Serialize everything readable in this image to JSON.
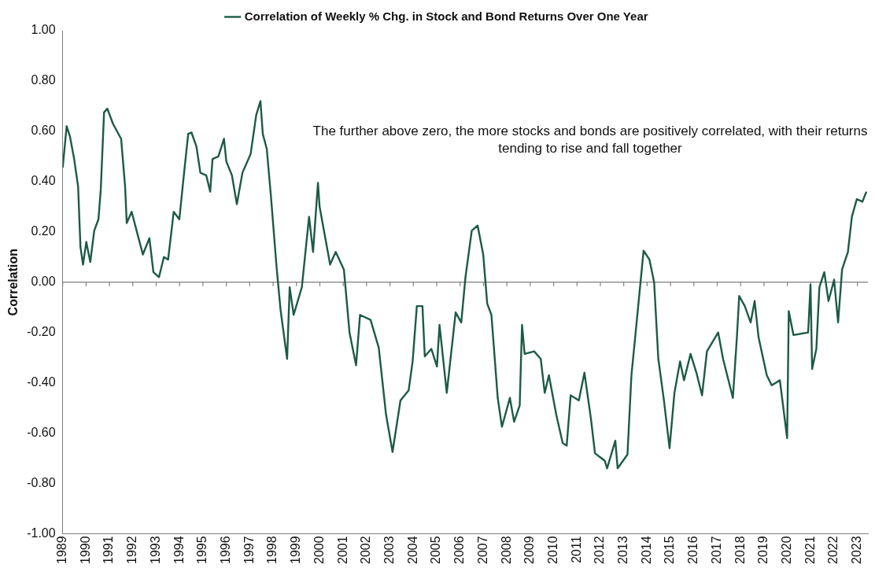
{
  "chart_data": {
    "type": "line",
    "ylabel": "Correlation",
    "legend": "top",
    "marker": "none",
    "annotations": [
      "The further above zero, the more stocks and bonds are positively correlated, with their returns tending to rise and fall together"
    ],
    "xlim": [
      1989,
      2023.45
    ],
    "xticks": [
      1989,
      1990,
      1991,
      1992,
      1993,
      1994,
      1995,
      1996,
      1997,
      1998,
      1999,
      2000,
      2001,
      2002,
      2003,
      2004,
      2005,
      2006,
      2007,
      2008,
      2009,
      2010,
      2011,
      2012,
      2013,
      2014,
      2015,
      2016,
      2017,
      2018,
      2019,
      2020,
      2021,
      2022,
      2023
    ],
    "ylim": [
      -1,
      1
    ],
    "yticks": [
      {
        "value": 1,
        "label": "1.00"
      },
      {
        "value": 0.8,
        "label": "0.80"
      },
      {
        "value": 0.6,
        "label": "0.60"
      },
      {
        "value": 0.4,
        "label": "0.40"
      },
      {
        "value": 0.2,
        "label": "0.20"
      },
      {
        "value": 0,
        "label": "0.00"
      },
      {
        "value": -0.2,
        "label": "-0.20"
      },
      {
        "value": -0.4,
        "label": "-0.40"
      },
      {
        "value": -0.6,
        "label": "-0.60"
      },
      {
        "value": -0.8,
        "label": "-0.80"
      },
      {
        "value": -1,
        "label": "-1.00"
      }
    ],
    "ref_lines": [
      {
        "axis": "y",
        "value": 0,
        "color": "#808080"
      }
    ],
    "series": [
      {
        "name": "Correlation of Weekly % Chg. in Stock and Bond Returns Over One Year",
        "color": "#1d5a48",
        "x": [
          1989.0,
          1989.17,
          1989.31,
          1989.49,
          1989.66,
          1989.76,
          1989.87,
          1990.01,
          1990.18,
          1990.35,
          1990.53,
          1990.63,
          1990.77,
          1990.91,
          1991.15,
          1991.5,
          1991.67,
          1991.74,
          1991.95,
          1992.19,
          1992.43,
          1992.71,
          1992.88,
          1993.12,
          1993.33,
          1993.51,
          1993.75,
          1993.99,
          1994.16,
          1994.37,
          1994.51,
          1994.72,
          1994.89,
          1995.14,
          1995.31,
          1995.41,
          1995.66,
          1995.9,
          1996.0,
          1996.24,
          1996.45,
          1996.69,
          1997.04,
          1997.28,
          1997.46,
          1997.56,
          1997.73,
          1997.91,
          1998.15,
          1998.32,
          1998.6,
          1998.71,
          1998.88,
          1999.23,
          1999.54,
          1999.71,
          1999.92,
          1999.99,
          2000.44,
          2000.68,
          2001.03,
          2001.27,
          2001.55,
          2001.72,
          2002.17,
          2002.52,
          2002.83,
          2003.11,
          2003.45,
          2003.8,
          2003.97,
          2004.15,
          2004.39,
          2004.49,
          2004.77,
          2005.01,
          2005.12,
          2005.43,
          2005.81,
          2006.05,
          2006.23,
          2006.5,
          2006.75,
          2006.99,
          2007.16,
          2007.34,
          2007.61,
          2007.79,
          2008.13,
          2008.31,
          2008.55,
          2008.65,
          2008.76,
          2009.17,
          2009.45,
          2009.62,
          2009.8,
          2010.11,
          2010.39,
          2010.56,
          2010.73,
          2011.08,
          2011.32,
          2011.6,
          2011.77,
          2012.19,
          2012.29,
          2012.64,
          2012.74,
          2013.16,
          2013.33,
          2013.51,
          2013.75,
          2013.85,
          2014.1,
          2014.3,
          2014.48,
          2014.72,
          2014.96,
          2015.17,
          2015.41,
          2015.58,
          2015.86,
          2016.11,
          2016.35,
          2016.56,
          2017.04,
          2017.25,
          2017.67,
          2017.84,
          2017.94,
          2018.18,
          2018.43,
          2018.6,
          2018.77,
          2019.12,
          2019.33,
          2019.68,
          2019.99,
          2020.06,
          2020.26,
          2020.89,
          2020.99,
          2021.06,
          2021.24,
          2021.37,
          2021.58,
          2021.76,
          2022.0,
          2022.17,
          2022.34,
          2022.59,
          2022.76,
          2022.97,
          2023.21,
          2023.38
        ],
        "values": [
          0.455,
          0.62,
          0.58,
          0.49,
          0.38,
          0.14,
          0.07,
          0.16,
          0.08,
          0.205,
          0.25,
          0.37,
          0.675,
          0.69,
          0.63,
          0.57,
          0.38,
          0.235,
          0.28,
          0.195,
          0.11,
          0.175,
          0.04,
          0.02,
          0.1,
          0.09,
          0.28,
          0.25,
          0.405,
          0.59,
          0.595,
          0.54,
          0.435,
          0.425,
          0.36,
          0.49,
          0.5,
          0.57,
          0.48,
          0.425,
          0.31,
          0.435,
          0.51,
          0.665,
          0.72,
          0.59,
          0.53,
          0.34,
          0.06,
          -0.11,
          -0.305,
          -0.02,
          -0.13,
          -0.02,
          0.26,
          0.12,
          0.395,
          0.3,
          0.07,
          0.12,
          0.05,
          -0.2,
          -0.33,
          -0.13,
          -0.15,
          -0.26,
          -0.525,
          -0.675,
          -0.47,
          -0.43,
          -0.315,
          -0.095,
          -0.095,
          -0.295,
          -0.265,
          -0.335,
          -0.17,
          -0.44,
          -0.12,
          -0.16,
          0.02,
          0.205,
          0.225,
          0.11,
          -0.085,
          -0.13,
          -0.46,
          -0.575,
          -0.46,
          -0.555,
          -0.49,
          -0.17,
          -0.285,
          -0.275,
          -0.305,
          -0.44,
          -0.37,
          -0.525,
          -0.64,
          -0.65,
          -0.45,
          -0.47,
          -0.36,
          -0.545,
          -0.68,
          -0.71,
          -0.74,
          -0.63,
          -0.74,
          -0.685,
          -0.37,
          -0.2,
          0.03,
          0.125,
          0.09,
          0.0,
          -0.305,
          -0.47,
          -0.66,
          -0.44,
          -0.315,
          -0.39,
          -0.285,
          -0.36,
          -0.45,
          -0.275,
          -0.2,
          -0.305,
          -0.46,
          -0.22,
          -0.055,
          -0.095,
          -0.16,
          -0.075,
          -0.22,
          -0.37,
          -0.41,
          -0.39,
          -0.62,
          -0.115,
          -0.21,
          -0.2,
          -0.01,
          -0.345,
          -0.265,
          -0.02,
          0.04,
          -0.075,
          0.01,
          -0.16,
          0.05,
          0.12,
          0.26,
          0.33,
          0.32,
          0.36
        ]
      }
    ]
  }
}
